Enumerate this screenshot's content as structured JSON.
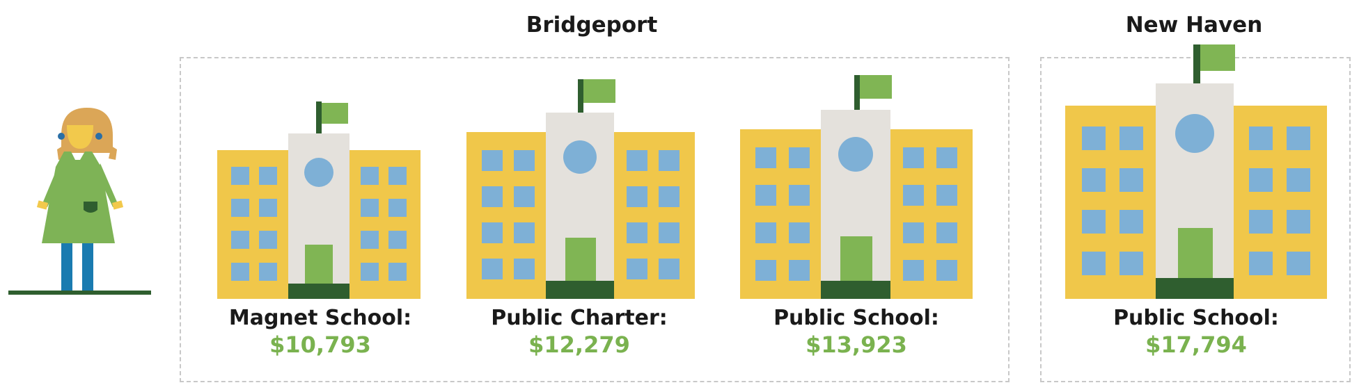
{
  "groups": [
    {
      "title": "Bridgeport"
    },
    {
      "title": "New Haven"
    }
  ],
  "schools": [
    {
      "label": "Magnet School:",
      "amount": "$10,793"
    },
    {
      "label": "Public Charter:",
      "amount": "$12,279"
    },
    {
      "label": "Public School:",
      "amount": "$13,923"
    },
    {
      "label": "Public School:",
      "amount": "$17,794"
    }
  ],
  "colors": {
    "building_wing": "#f0c74a",
    "building_center": "#e4e1dc",
    "window": "#7eb0d6",
    "door": "#80b554",
    "base": "#2f5e2f",
    "flag": "#80b554",
    "pole": "#2f5e2f",
    "amount_text": "#7ab24f",
    "title_text": "#1a1a1a"
  },
  "icons": [
    "student-girl-icon",
    "school-building-icon"
  ]
}
